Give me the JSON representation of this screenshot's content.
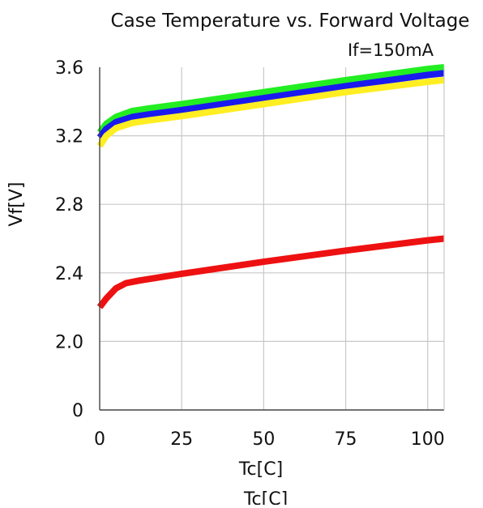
{
  "chart_data": {
    "type": "line",
    "title": "Case Temperature vs. Forward Voltage",
    "subtitle": "If=150mA",
    "xlabel": "Tc[C]",
    "xlabel_clipped_duplicate": "Tc[C]",
    "ylabel": "Vf[V]",
    "x_ticks": [
      "0",
      "25",
      "50",
      "75",
      "100"
    ],
    "y_ticks": [
      "0",
      "2.0",
      "2.4",
      "2.8",
      "3.2",
      "3.6"
    ],
    "xlim": [
      0,
      105
    ],
    "ylim": [
      1.6,
      3.6
    ],
    "y_axis_break": "bottom tick labeled 0 sits one gridline below 2.0",
    "grid": true,
    "legend": "none",
    "series": [
      {
        "color": "#22ee22",
        "x": [
          0,
          2,
          5,
          10,
          15,
          25,
          50,
          75,
          100,
          105
        ],
        "y": [
          3.22,
          3.27,
          3.31,
          3.345,
          3.36,
          3.385,
          3.455,
          3.525,
          3.59,
          3.6
        ]
      },
      {
        "color": "#1a1aee",
        "x": [
          0,
          2,
          5,
          10,
          15,
          25,
          50,
          75,
          100,
          105
        ],
        "y": [
          3.19,
          3.24,
          3.28,
          3.31,
          3.325,
          3.35,
          3.42,
          3.49,
          3.555,
          3.565
        ]
      },
      {
        "color": "#ffee22",
        "x": [
          0,
          2,
          5,
          10,
          15,
          25,
          50,
          75,
          100,
          105
        ],
        "y": [
          3.14,
          3.2,
          3.245,
          3.275,
          3.29,
          3.315,
          3.385,
          3.455,
          3.515,
          3.525
        ]
      },
      {
        "color": "#ee1111",
        "x": [
          0,
          2,
          5,
          8,
          12,
          25,
          50,
          75,
          100,
          105
        ],
        "y": [
          2.2,
          2.25,
          2.31,
          2.34,
          2.355,
          2.395,
          2.465,
          2.53,
          2.59,
          2.6
        ]
      }
    ]
  }
}
